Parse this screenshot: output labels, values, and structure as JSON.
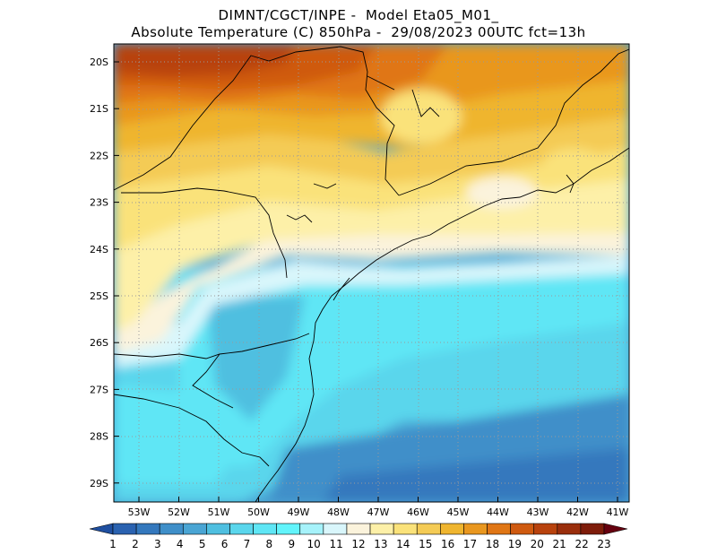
{
  "title": {
    "line1": "DIMNT/CGCT/INPE -  Model Eta05_M01_",
    "line2": "Absolute Temperature (C) 850hPa -  29/08/2023 00UTC fct=13h"
  },
  "map": {
    "lat_labels": [
      "20S",
      "21S",
      "22S",
      "23S",
      "24S",
      "25S",
      "26S",
      "27S",
      "28S",
      "29S"
    ],
    "lon_labels": [
      "53W",
      "52W",
      "51W",
      "50W",
      "49W",
      "48W",
      "47W",
      "46W",
      "45W",
      "44W",
      "43W",
      "42W",
      "41W"
    ],
    "frame_color": "#000000",
    "grid_color": "#9a9a9a",
    "boundary_color": "#000000"
  },
  "colorbar": {
    "values": [
      "1",
      "2",
      "3",
      "4",
      "5",
      "6",
      "7",
      "8",
      "9",
      "10",
      "11",
      "12",
      "13",
      "14",
      "15",
      "16",
      "17",
      "18",
      "19",
      "20",
      "21",
      "22",
      "23"
    ],
    "colors": [
      "#1f4fa0",
      "#2a62b0",
      "#3478bd",
      "#3f8fc9",
      "#4aa5d4",
      "#4fbfe0",
      "#5ad6ec",
      "#5fe6f5",
      "#62f4fb",
      "#a6f2fa",
      "#d9f6fb",
      "#fbf3dc",
      "#fdf0a8",
      "#fae27a",
      "#f4cb55",
      "#efb52f",
      "#e9971f",
      "#e07615",
      "#cf5a10",
      "#b8420d",
      "#9a2e0c",
      "#7e1c0a",
      "#66000f"
    ]
  }
}
